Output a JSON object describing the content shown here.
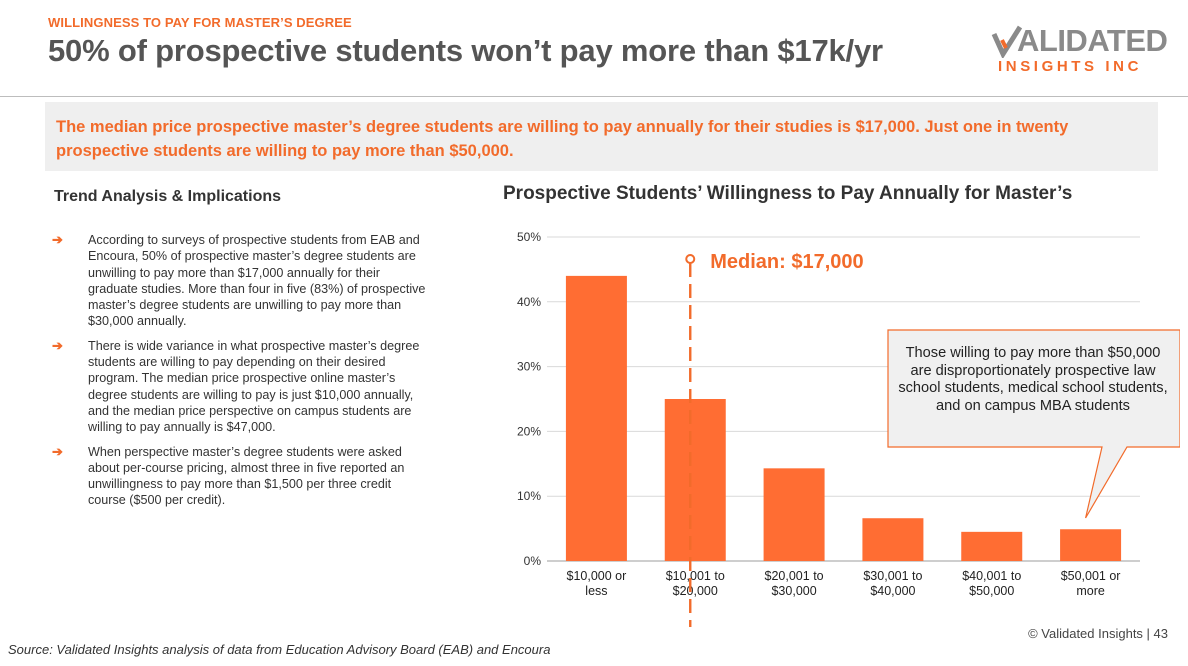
{
  "header": {
    "kicker": "WILLINGNESS TO PAY FOR MASTER’S DEGREE",
    "title": "50% of prospective students won’t pay more than $17k/yr"
  },
  "logo": {
    "top": "ALIDATED",
    "bottom": "INSIGHTS INC"
  },
  "callout": "The median price prospective master’s degree students are willing to pay annually for their studies is $17,000. Just one in twenty prospective students are willing to pay more than $50,000.",
  "trend": {
    "title": "Trend Analysis & Implications",
    "arrow": "➔",
    "bullets": [
      "According to surveys of prospective students from EAB and Encoura, 50% of prospective master’s degree students are unwilling to pay more than $17,000 annually for their graduate studies. More than four in five (83%) of prospective master’s degree students are unwilling to pay more than $30,000 annually.",
      "There is wide variance in what prospective master’s degree students are willing to pay depending on their desired program. The median price prospective online master’s degree students are willing to pay is just $10,000 annually, and the median price perspective on campus students are willing to pay annually is $47,000.",
      "When perspective master’s degree students were asked about per-course pricing, almost three in five reported an unwillingness to pay more than $1,500 per three credit course ($500 per credit)."
    ]
  },
  "chart_data": {
    "type": "bar",
    "title": "Prospective Students’ Willingness to Pay Annually for Master’s",
    "categories": [
      [
        "$10,000 or",
        "less"
      ],
      [
        "$10,001 to",
        "$20,000"
      ],
      [
        "$20,001 to",
        "$30,000"
      ],
      [
        "$30,001 to",
        "$40,000"
      ],
      [
        "$40,001 to",
        "$50,000"
      ],
      [
        "$50,001 or",
        "more"
      ]
    ],
    "values": [
      44,
      25,
      14.3,
      6.6,
      4.5,
      4.9
    ],
    "ylim": [
      0,
      50
    ],
    "yticks": [
      0,
      10,
      20,
      30,
      40,
      50
    ],
    "ytick_labels": [
      "0%",
      "10%",
      "20%",
      "30%",
      "40%",
      "50%"
    ],
    "grid": true,
    "median_label": "Median: $17,000",
    "median_position": 1.5,
    "annotation": "Those willing to pay more than $50,000 are disproportionately prospective law school students, medical school students, and on campus MBA students",
    "bar_color": "#ff6d33",
    "line_color": "#f26b2b"
  },
  "source": "Source: Validated Insights analysis of data from Education Advisory Board (EAB) and Encoura",
  "footer": "© Validated Insights | 43"
}
